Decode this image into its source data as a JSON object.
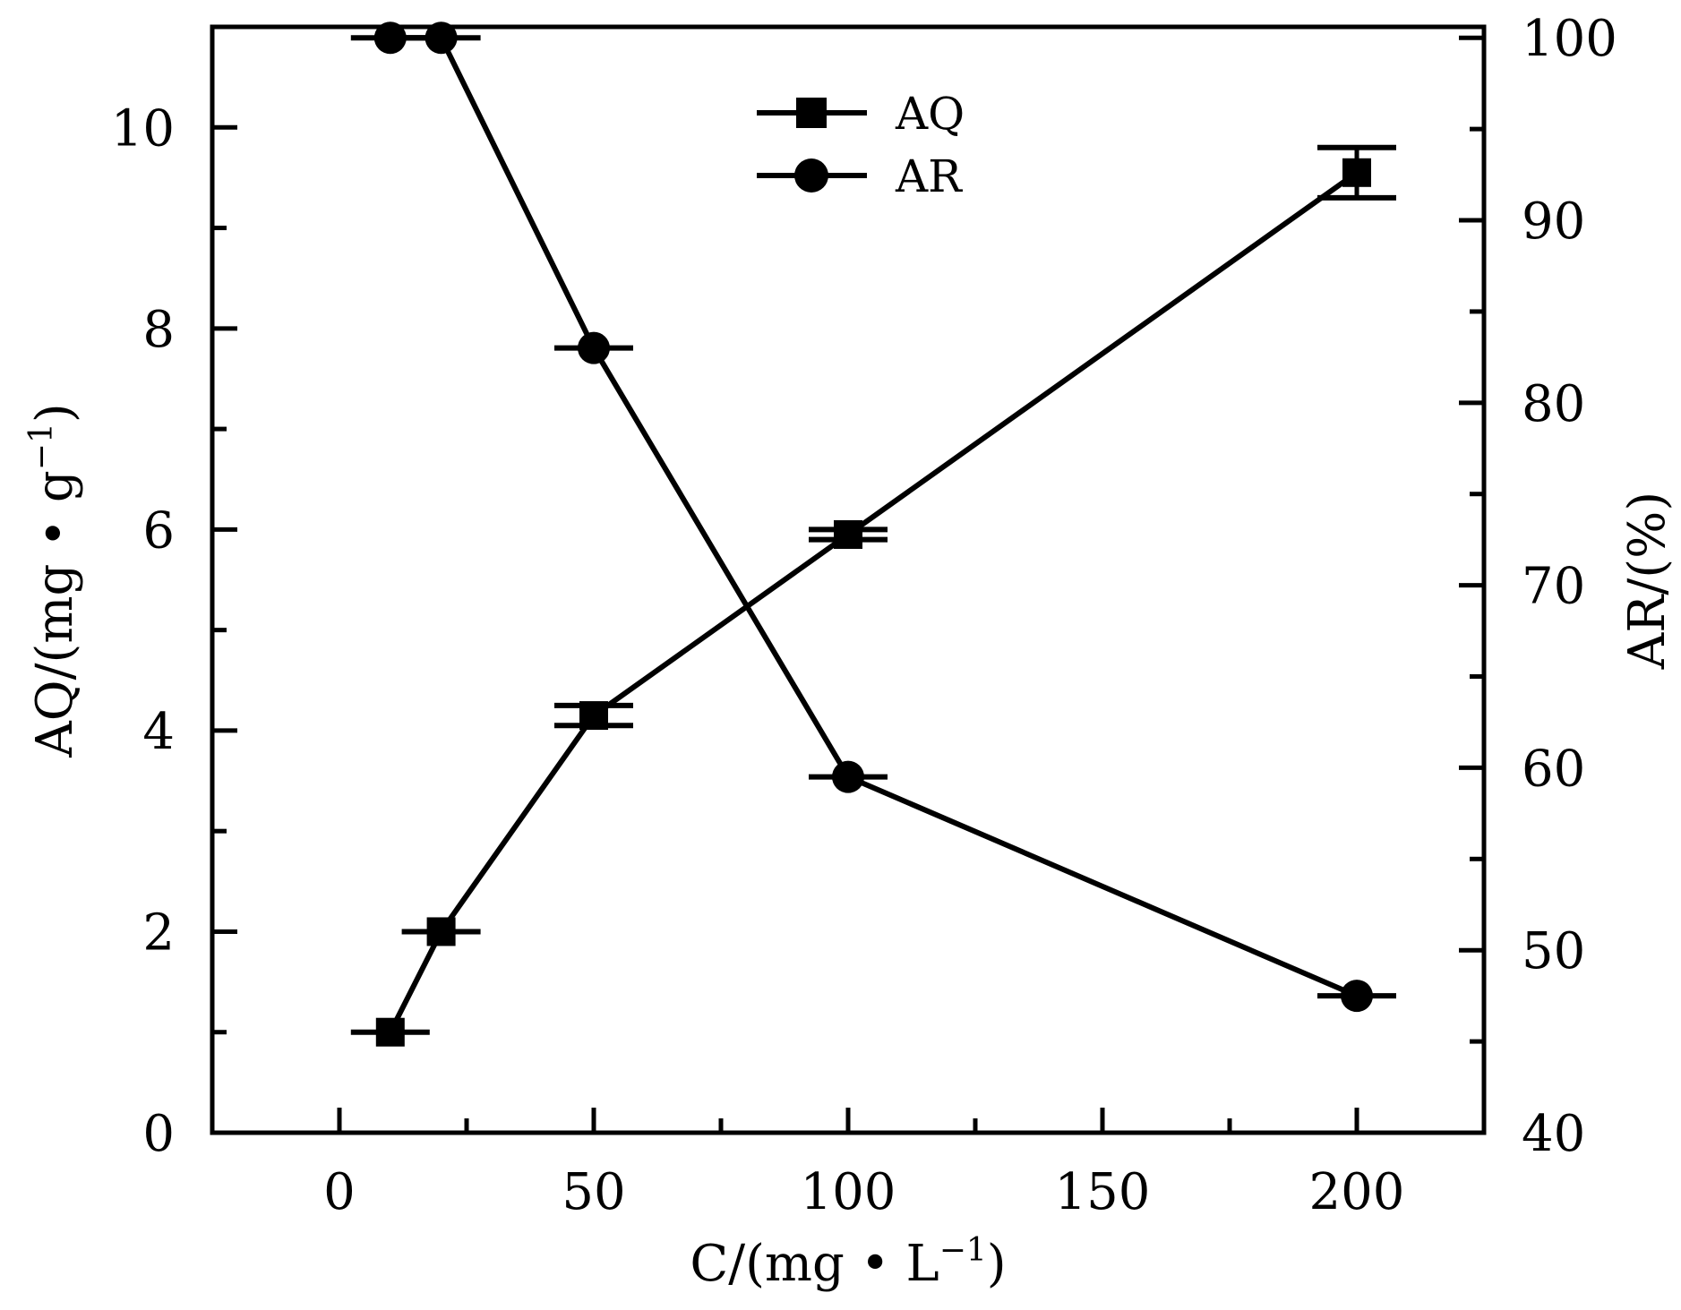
{
  "chart_data": {
    "type": "line",
    "xlabel": "C/(mg • L",
    "xlabel_sup": "−1",
    "xlabel_tail": ")",
    "ylabel_left": "AQ/(mg • g",
    "ylabel_left_sup": "−1",
    "ylabel_left_tail": ")",
    "ylabel_right": "AR/(%)",
    "xlim": [
      -25,
      225
    ],
    "ylim_left": [
      0,
      11
    ],
    "ylim_right": [
      40,
      100.6
    ],
    "x_ticks": [
      0,
      50,
      100,
      150,
      200
    ],
    "x_tick_labels": [
      "0",
      "50",
      "100",
      "150",
      "200"
    ],
    "x_minor_ticks": [
      25,
      75,
      125,
      175
    ],
    "y_left_ticks": [
      0,
      2,
      4,
      6,
      8,
      10
    ],
    "y_left_tick_labels": [
      "0",
      "2",
      "4",
      "6",
      "8",
      "10"
    ],
    "y_left_minor_ticks": [
      1,
      3,
      5,
      7,
      9
    ],
    "y_right_ticks": [
      40,
      50,
      60,
      70,
      80,
      90,
      100
    ],
    "y_right_tick_labels": [
      "40",
      "50",
      "60",
      "70",
      "80",
      "90",
      "100"
    ],
    "y_right_minor_ticks": [
      45,
      55,
      65,
      75,
      85,
      95
    ],
    "grid": false,
    "legend_position": "top-center",
    "series": [
      {
        "name": "AQ",
        "axis": "left",
        "marker": "square",
        "x": [
          10,
          20,
          50,
          100,
          200
        ],
        "y": [
          1.0,
          2.0,
          4.15,
          5.95,
          9.55
        ],
        "y_err": [
          0.0,
          0.0,
          0.1,
          0.05,
          0.25
        ]
      },
      {
        "name": "AR",
        "axis": "right",
        "marker": "circle",
        "x": [
          10,
          20,
          50,
          100,
          200
        ],
        "y": [
          100,
          100,
          83,
          59.5,
          47.5
        ],
        "y_err": [
          0,
          0,
          0,
          0,
          0
        ]
      }
    ],
    "colors": {
      "line": "#000000",
      "background": "#ffffff"
    }
  }
}
